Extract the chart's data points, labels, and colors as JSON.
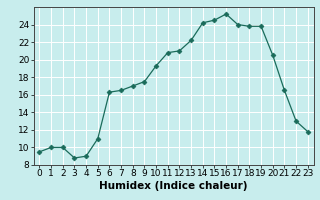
{
  "x": [
    0,
    1,
    2,
    3,
    4,
    5,
    6,
    7,
    8,
    9,
    10,
    11,
    12,
    13,
    14,
    15,
    16,
    17,
    18,
    19,
    20,
    21,
    22,
    23
  ],
  "y": [
    9.5,
    10.0,
    10.0,
    8.8,
    9.0,
    11.0,
    16.3,
    16.5,
    17.0,
    17.5,
    19.3,
    20.8,
    21.0,
    22.2,
    24.2,
    24.5,
    25.2,
    24.0,
    23.8,
    23.8,
    20.5,
    16.5,
    13.0,
    11.8
  ],
  "line_color": "#1a6b5a",
  "marker": "D",
  "marker_size": 2.5,
  "background_color": "#c8eded",
  "grid_major_color": "#ffffff",
  "grid_minor_color": "#daf0f0",
  "xlabel": "Humidex (Indice chaleur)",
  "xlim": [
    -0.5,
    23.5
  ],
  "ylim": [
    8,
    26
  ],
  "yticks": [
    8,
    10,
    12,
    14,
    16,
    18,
    20,
    22,
    24
  ],
  "xticks": [
    0,
    1,
    2,
    3,
    4,
    5,
    6,
    7,
    8,
    9,
    10,
    11,
    12,
    13,
    14,
    15,
    16,
    17,
    18,
    19,
    20,
    21,
    22,
    23
  ],
  "xlabel_fontsize": 7.5,
  "tick_fontsize": 6.5
}
